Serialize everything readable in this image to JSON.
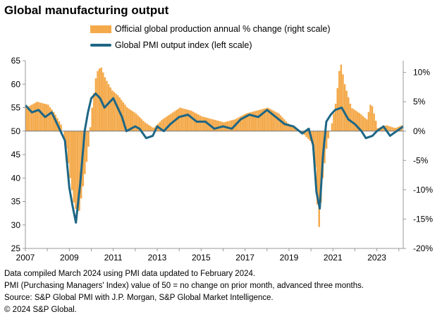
{
  "chart_data": {
    "type": "bar+line",
    "title": "Global manufacturing output",
    "legend": [
      {
        "name": "Official global production annual % change (right scale)",
        "kind": "bar",
        "color": "#f4a94a"
      },
      {
        "name": "Global PMI output index (left scale)",
        "kind": "line",
        "color": "#1e6685"
      }
    ],
    "x_ticks": [
      "2007",
      "2009",
      "2011",
      "2013",
      "2015",
      "2017",
      "2019",
      "2021",
      "2023"
    ],
    "x_range": [
      2007.0,
      2024.2
    ],
    "left_axis": {
      "range": [
        25,
        65
      ],
      "ticks": [
        25,
        30,
        35,
        40,
        45,
        50,
        55,
        60,
        65
      ]
    },
    "right_axis": {
      "range": [
        -20,
        12
      ],
      "ticks": [
        "-20%",
        "-15%",
        "-10%",
        "-5%",
        "0%",
        "5%",
        "10%"
      ],
      "tick_values": [
        -20,
        -15,
        -10,
        -5,
        0,
        5,
        10
      ]
    },
    "series": [
      {
        "name": "Official global production annual % change (right scale)",
        "axis": "right",
        "points": [
          [
            2007.0,
            4.0
          ],
          [
            2007.5,
            5.0
          ],
          [
            2008.0,
            4.5
          ],
          [
            2008.3,
            3.0
          ],
          [
            2008.6,
            1.0
          ],
          [
            2008.8,
            -2.0
          ],
          [
            2009.0,
            -8.0
          ],
          [
            2009.2,
            -13.0
          ],
          [
            2009.4,
            -14.0
          ],
          [
            2009.6,
            -9.0
          ],
          [
            2009.8,
            -4.0
          ],
          [
            2010.0,
            4.0
          ],
          [
            2010.2,
            10.0
          ],
          [
            2010.4,
            11.0
          ],
          [
            2010.6,
            9.0
          ],
          [
            2010.9,
            7.0
          ],
          [
            2011.2,
            6.0
          ],
          [
            2011.6,
            4.0
          ],
          [
            2012.0,
            3.0
          ],
          [
            2012.4,
            1.5
          ],
          [
            2012.8,
            0.5
          ],
          [
            2013.2,
            2.0
          ],
          [
            2013.6,
            3.0
          ],
          [
            2014.0,
            4.0
          ],
          [
            2014.5,
            3.5
          ],
          [
            2015.0,
            2.5
          ],
          [
            2015.5,
            2.0
          ],
          [
            2016.0,
            1.5
          ],
          [
            2016.5,
            2.0
          ],
          [
            2017.0,
            3.0
          ],
          [
            2017.5,
            3.5
          ],
          [
            2018.0,
            4.0
          ],
          [
            2018.5,
            3.0
          ],
          [
            2019.0,
            1.0
          ],
          [
            2019.5,
            0.0
          ],
          [
            2020.0,
            -2.0
          ],
          [
            2020.2,
            -7.0
          ],
          [
            2020.3,
            -18.0
          ],
          [
            2020.5,
            -8.0
          ],
          [
            2020.7,
            -2.0
          ],
          [
            2020.9,
            1.0
          ],
          [
            2021.1,
            5.0
          ],
          [
            2021.3,
            12.0
          ],
          [
            2021.5,
            8.0
          ],
          [
            2021.8,
            4.0
          ],
          [
            2022.2,
            3.0
          ],
          [
            2022.5,
            2.0
          ],
          [
            2022.7,
            5.0
          ],
          [
            2023.0,
            0.5
          ],
          [
            2023.4,
            1.0
          ],
          [
            2023.8,
            0.5
          ],
          [
            2024.1,
            1.0
          ]
        ]
      },
      {
        "name": "Global PMI output index (left scale)",
        "axis": "left",
        "points": [
          [
            2007.0,
            55.5
          ],
          [
            2007.3,
            54.0
          ],
          [
            2007.6,
            54.5
          ],
          [
            2007.9,
            53.0
          ],
          [
            2008.2,
            54.0
          ],
          [
            2008.5,
            51.0
          ],
          [
            2008.8,
            48.0
          ],
          [
            2009.0,
            38.0
          ],
          [
            2009.15,
            34.0
          ],
          [
            2009.3,
            30.5
          ],
          [
            2009.5,
            39.0
          ],
          [
            2009.7,
            50.0
          ],
          [
            2009.85,
            54.0
          ],
          [
            2010.0,
            57.0
          ],
          [
            2010.2,
            58.0
          ],
          [
            2010.4,
            57.0
          ],
          [
            2010.6,
            55.0
          ],
          [
            2010.8,
            56.0
          ],
          [
            2011.0,
            57.0
          ],
          [
            2011.2,
            55.0
          ],
          [
            2011.4,
            53.0
          ],
          [
            2011.6,
            50.0
          ],
          [
            2011.8,
            50.5
          ],
          [
            2012.0,
            51.0
          ],
          [
            2012.2,
            50.5
          ],
          [
            2012.5,
            48.5
          ],
          [
            2012.8,
            49.0
          ],
          [
            2013.0,
            51.0
          ],
          [
            2013.3,
            50.0
          ],
          [
            2013.6,
            51.5
          ],
          [
            2014.0,
            53.0
          ],
          [
            2014.4,
            53.5
          ],
          [
            2014.8,
            52.0
          ],
          [
            2015.2,
            52.0
          ],
          [
            2015.6,
            50.5
          ],
          [
            2016.0,
            51.0
          ],
          [
            2016.4,
            50.5
          ],
          [
            2016.8,
            52.5
          ],
          [
            2017.2,
            53.5
          ],
          [
            2017.6,
            53.0
          ],
          [
            2018.0,
            54.5
          ],
          [
            2018.4,
            53.0
          ],
          [
            2018.8,
            51.5
          ],
          [
            2019.2,
            51.0
          ],
          [
            2019.6,
            49.5
          ],
          [
            2019.9,
            50.5
          ],
          [
            2020.1,
            47.0
          ],
          [
            2020.25,
            37.0
          ],
          [
            2020.4,
            33.5
          ],
          [
            2020.55,
            45.0
          ],
          [
            2020.7,
            52.0
          ],
          [
            2020.9,
            53.5
          ],
          [
            2021.1,
            54.5
          ],
          [
            2021.4,
            55.0
          ],
          [
            2021.7,
            52.5
          ],
          [
            2022.0,
            51.5
          ],
          [
            2022.3,
            50.0
          ],
          [
            2022.5,
            48.5
          ],
          [
            2022.8,
            49.0
          ],
          [
            2023.0,
            50.0
          ],
          [
            2023.3,
            51.0
          ],
          [
            2023.6,
            49.0
          ],
          [
            2023.9,
            50.0
          ],
          [
            2024.2,
            51.0
          ]
        ]
      }
    ],
    "grid": "none"
  },
  "footnotes": [
    "Data compiled March 2024 using PMI data updated to February 2024.",
    "PMI (Purchasing Managers' Index) value of 50 = no change on prior month, advanced three months.",
    "Source: S&P Global PMI with J.P. Morgan, S&P Global Market Intelligence.",
    "© 2024 S&P Global."
  ]
}
